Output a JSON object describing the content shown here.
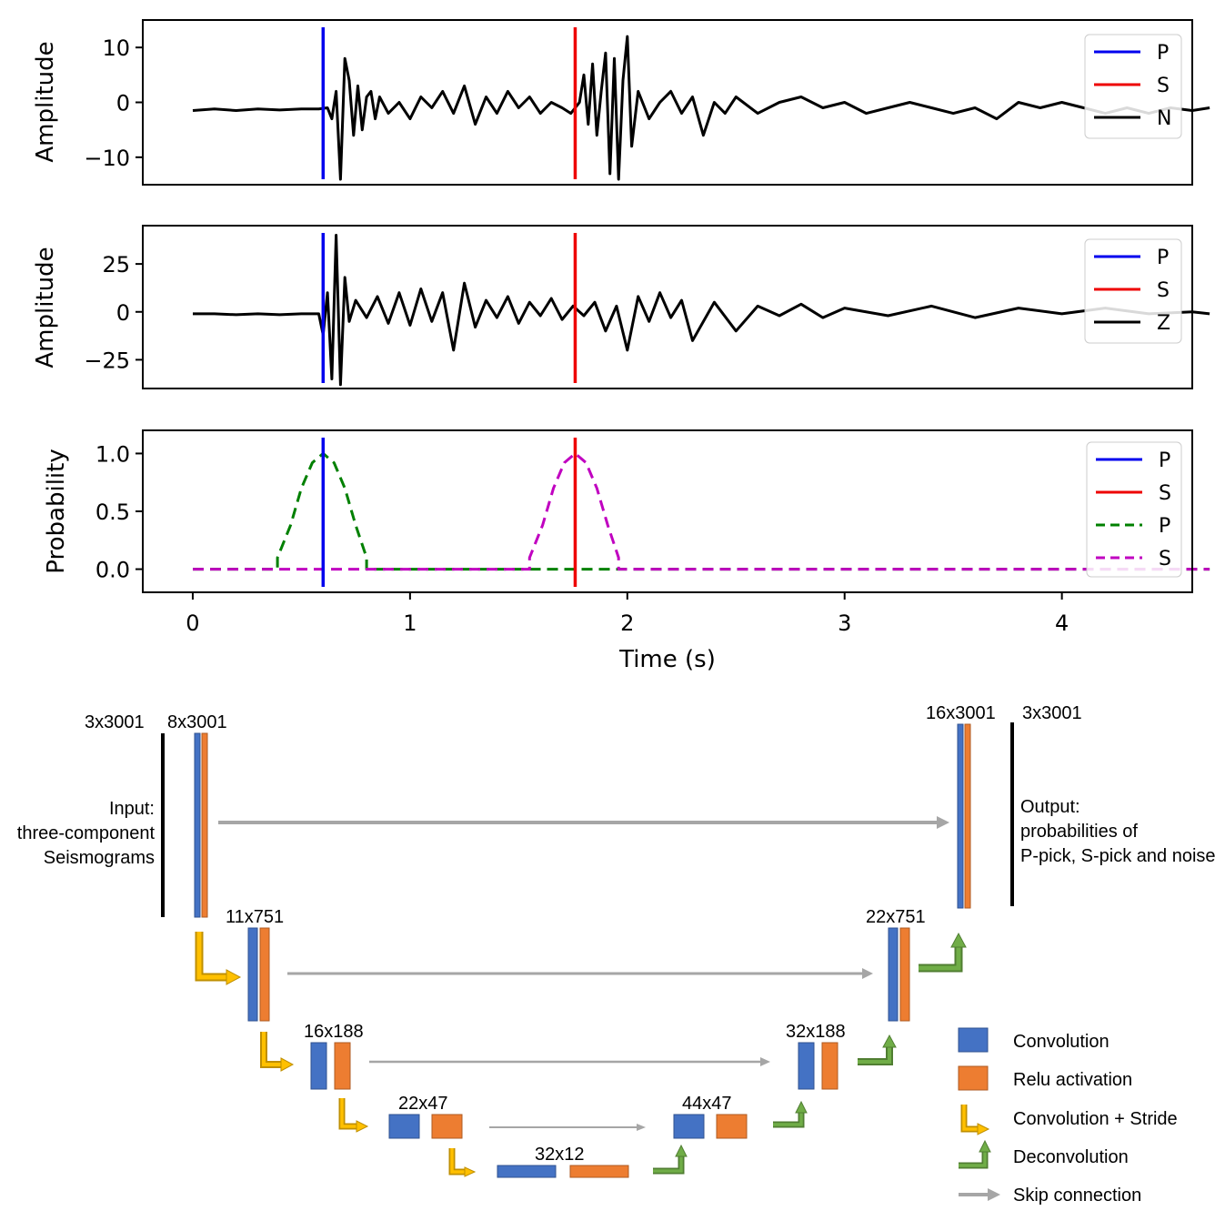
{
  "chart_data": [
    {
      "type": "line",
      "ylabel": "Amplitude",
      "ylim": [
        -15,
        15
      ],
      "yticks": [
        {
          "v": 10,
          "label": "10"
        },
        {
          "v": 0,
          "label": "0"
        },
        {
          "v": -10,
          "label": "−10"
        }
      ],
      "xlim": [
        -0.23,
        4.6
      ],
      "picks": [
        {
          "name": "P",
          "x": 0.6,
          "color": "#0000ee"
        },
        {
          "name": "S",
          "x": 1.76,
          "color": "#ee0000"
        }
      ],
      "series": [
        {
          "name": "N",
          "color": "#000000",
          "x": [
            0,
            0.1,
            0.2,
            0.3,
            0.4,
            0.5,
            0.58,
            0.62,
            0.64,
            0.66,
            0.68,
            0.7,
            0.72,
            0.74,
            0.76,
            0.78,
            0.8,
            0.82,
            0.84,
            0.86,
            0.9,
            0.95,
            1.0,
            1.05,
            1.1,
            1.15,
            1.2,
            1.25,
            1.3,
            1.35,
            1.4,
            1.45,
            1.5,
            1.55,
            1.6,
            1.65,
            1.7,
            1.74,
            1.76,
            1.78,
            1.8,
            1.82,
            1.84,
            1.86,
            1.88,
            1.9,
            1.92,
            1.94,
            1.96,
            1.98,
            2.0,
            2.02,
            2.05,
            2.1,
            2.15,
            2.2,
            2.25,
            2.3,
            2.35,
            2.4,
            2.45,
            2.5,
            2.6,
            2.7,
            2.8,
            2.9,
            3.0,
            3.1,
            3.2,
            3.3,
            3.4,
            3.5,
            3.6,
            3.7,
            3.8,
            3.9,
            4.0,
            4.1,
            4.2,
            4.3,
            4.4,
            4.5,
            4.6,
            4.68
          ],
          "y": [
            -1.5,
            -1.2,
            -1.5,
            -1.2,
            -1.4,
            -1.2,
            -1.2,
            -1,
            -3,
            2,
            -14,
            8,
            4,
            -6,
            3,
            -5,
            1,
            2,
            -3,
            1,
            -2,
            0,
            -3,
            1,
            -1,
            2,
            -2,
            3,
            -4,
            1,
            -2,
            2,
            -1,
            1,
            -2,
            0,
            -1,
            -2,
            -1,
            0,
            5,
            -4,
            7,
            -6,
            2,
            9,
            -13,
            8,
            -14,
            4,
            12,
            -8,
            2,
            -3,
            0,
            2,
            -2,
            1,
            -6,
            0,
            -2,
            1,
            -2,
            0,
            1,
            -1,
            0,
            -2,
            -1,
            0,
            -1,
            -2,
            -1,
            -3,
            0,
            -1,
            0,
            -1,
            -2,
            -1,
            -2,
            -1,
            -1.5,
            -1
          ]
        }
      ]
    },
    {
      "type": "line",
      "ylabel": "Amplitude",
      "ylim": [
        -40,
        45
      ],
      "yticks": [
        {
          "v": 25,
          "label": "25"
        },
        {
          "v": 0,
          "label": "0"
        },
        {
          "v": -25,
          "label": "−25"
        }
      ],
      "xlim": [
        -0.23,
        4.6
      ],
      "picks": [
        {
          "name": "P",
          "x": 0.6,
          "color": "#0000ee"
        },
        {
          "name": "S",
          "x": 1.76,
          "color": "#ee0000"
        }
      ],
      "series": [
        {
          "name": "Z",
          "color": "#000000",
          "x": [
            0,
            0.1,
            0.2,
            0.3,
            0.4,
            0.5,
            0.58,
            0.6,
            0.62,
            0.64,
            0.66,
            0.68,
            0.7,
            0.72,
            0.75,
            0.8,
            0.85,
            0.9,
            0.95,
            1.0,
            1.05,
            1.1,
            1.15,
            1.2,
            1.25,
            1.3,
            1.35,
            1.4,
            1.45,
            1.5,
            1.55,
            1.6,
            1.65,
            1.7,
            1.75,
            1.8,
            1.85,
            1.9,
            1.95,
            2.0,
            2.05,
            2.1,
            2.15,
            2.2,
            2.25,
            2.3,
            2.4,
            2.5,
            2.6,
            2.7,
            2.8,
            2.9,
            3.0,
            3.2,
            3.4,
            3.6,
            3.8,
            4.0,
            4.2,
            4.4,
            4.6,
            4.68
          ],
          "y": [
            -1,
            -1,
            -1.5,
            -1,
            -1.5,
            -1,
            -1,
            -12,
            10,
            -35,
            40,
            -38,
            18,
            -5,
            6,
            -3,
            8,
            -6,
            10,
            -7,
            12,
            -5,
            10,
            -20,
            15,
            -8,
            6,
            -3,
            8,
            -6,
            5,
            -2,
            7,
            -4,
            3,
            -2,
            5,
            -10,
            3,
            -20,
            8,
            -5,
            10,
            -3,
            6,
            -15,
            5,
            -10,
            3,
            -2,
            4,
            -3,
            2,
            -2,
            3,
            -3,
            2,
            -1,
            2,
            -1,
            0,
            -1
          ]
        }
      ]
    },
    {
      "type": "line",
      "ylabel": "Probability",
      "xlabel": "Time (s)",
      "ylim": [
        -0.2,
        1.2
      ],
      "yticks": [
        {
          "v": 1.0,
          "label": "1.0"
        },
        {
          "v": 0.5,
          "label": "0.5"
        },
        {
          "v": 0.0,
          "label": "0.0"
        }
      ],
      "xlim": [
        -0.23,
        4.6
      ],
      "xticks": [
        {
          "v": 0,
          "label": "0"
        },
        {
          "v": 1,
          "label": "1"
        },
        {
          "v": 2,
          "label": "2"
        },
        {
          "v": 3,
          "label": "3"
        },
        {
          "v": 4,
          "label": "4"
        }
      ],
      "picks": [
        {
          "name": "P",
          "x": 0.6,
          "color": "#0000ee"
        },
        {
          "name": "S",
          "x": 1.76,
          "color": "#ee0000"
        }
      ],
      "series": [
        {
          "name": "P",
          "color": "#008000",
          "dashed": true,
          "x": [
            0,
            0.39,
            0.39,
            0.45,
            0.5,
            0.55,
            0.6,
            0.65,
            0.7,
            0.75,
            0.8,
            0.8,
            4.68
          ],
          "y": [
            0,
            0,
            0.1,
            0.38,
            0.7,
            0.92,
            1.0,
            0.92,
            0.7,
            0.38,
            0.1,
            0,
            0
          ]
        },
        {
          "name": "S",
          "color": "#c000c0",
          "dashed": true,
          "x": [
            0,
            1.55,
            1.55,
            1.61,
            1.66,
            1.71,
            1.76,
            1.81,
            1.86,
            1.91,
            1.96,
            1.96,
            4.68
          ],
          "y": [
            0,
            0,
            0.1,
            0.38,
            0.7,
            0.92,
            1.0,
            0.92,
            0.7,
            0.38,
            0.1,
            0,
            0
          ]
        }
      ]
    }
  ],
  "diagram": {
    "input_dim": "3x3001",
    "input_dim2": "8x3001",
    "input_text": [
      "Input:",
      "three-component",
      "Seismograms"
    ],
    "output_dim": "3x3001",
    "output_dim2": "16x3001",
    "output_text": [
      "Output:",
      "probabilities of",
      "P-pick, S-pick and noise"
    ],
    "enc": [
      "11x751",
      "16x188",
      "22x47",
      "32x12"
    ],
    "dec": [
      "22x751",
      "32x188",
      "44x47"
    ],
    "colors": {
      "conv": "#4472c4",
      "relu": "#ed7d31",
      "stride": "#ffc000",
      "deconv": "#70ad47",
      "skip": "#a6a6a6"
    },
    "legend": {
      "conv": "Convolution",
      "relu": "Relu activation",
      "stride": "Convolution + Stride",
      "deconv": "Deconvolution",
      "skip": "Skip connection"
    }
  }
}
